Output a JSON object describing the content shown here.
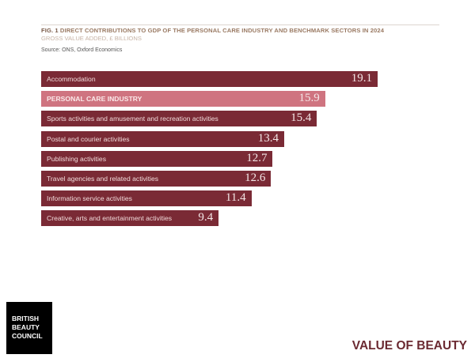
{
  "chart_data": {
    "type": "bar",
    "orientation": "horizontal",
    "fig_label": "FIG. 1",
    "title": "DIRECT CONTRIBUTIONS TO GDP OF THE PERSONAL CARE INDUSTRY AND BENCHMARK SECTORS IN 2024",
    "subtitle": "GROSS VALUE ADDED, £ BILLIONS",
    "source": "Source: ONS, Oxford Economics",
    "categories": [
      "Accommodation",
      "PERSONAL CARE INDUSTRY",
      "Sports activities and amusement and recreation activities",
      "Postal and courier activities",
      "Publishing activities",
      "Travel agencies and related activities",
      "Information service activities",
      "Creative, arts and entertainment activities"
    ],
    "values": [
      19.1,
      15.9,
      15.4,
      13.4,
      12.7,
      12.6,
      11.4,
      9.4
    ],
    "value_labels": [
      "19.1",
      "15.9",
      "15.4",
      "13.4",
      "12.7",
      "12.6",
      "11.4",
      "9.4"
    ],
    "highlight_index": 1,
    "colors": {
      "bar": "#7a2a35",
      "highlight": "#cf7480"
    },
    "xlabel": "",
    "ylabel": "",
    "grid": false
  },
  "footer": {
    "logo_lines": [
      "BRITISH",
      "BEAUTY",
      "COUNCIL"
    ],
    "brand": "VALUE OF BEAUTY"
  }
}
